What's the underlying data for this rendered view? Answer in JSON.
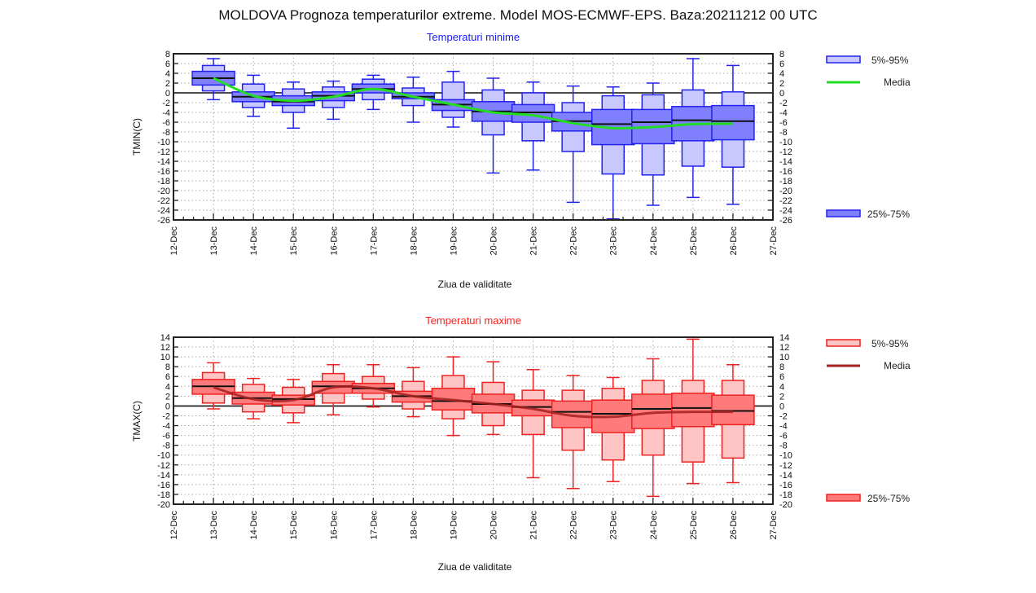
{
  "page": {
    "title": "MOLDOVA  Prognoza temperaturilor extreme.  Model MOS-ECMWF-EPS. Baza:20211212 00 UTC"
  },
  "chart_data": [
    {
      "type": "box",
      "id": "tmin",
      "title": "Temperaturi minime",
      "title_color": "#1a1aff",
      "xlabel": "Ziua de validitate",
      "ylabel": "TMIN(C)",
      "ylim": [
        -26,
        8
      ],
      "ytick_step": 2,
      "x_tick_labels": [
        "12-Dec",
        "13-Dec",
        "14-Dec",
        "15-Dec",
        "16-Dec",
        "17-Dec",
        "18-Dec",
        "19-Dec",
        "20-Dec",
        "21-Dec",
        "22-Dec",
        "23-Dec",
        "24-Dec",
        "25-Dec",
        "26-Dec",
        "27-Dec"
      ],
      "grid": true,
      "colors": {
        "p5_95_fill": "#c8c8ff",
        "p25_75_fill": "#8080ff",
        "edge": "#2222ee",
        "mean": "#22dd22",
        "median": "#111111"
      },
      "legend": {
        "placement": "right",
        "items": [
          {
            "label": "5%-95%",
            "kind": "box-light"
          },
          {
            "label": "Media",
            "kind": "line"
          },
          {
            "label": "25%-75%",
            "kind": "box-dark"
          }
        ]
      },
      "categories": [
        "13-Dec",
        "14-Dec",
        "15-Dec",
        "16-Dec",
        "17-Dec",
        "18-Dec",
        "19-Dec",
        "20-Dec",
        "21-Dec",
        "22-Dec",
        "23-Dec",
        "24-Dec",
        "25-Dec",
        "26-Dec"
      ],
      "series": [
        {
          "name": "min",
          "values": [
            -1.4,
            -4.8,
            -7.2,
            -5.4,
            -3.4,
            -6.0,
            -7.0,
            -16.4,
            -15.8,
            -22.4,
            -25.8,
            -23.0,
            -21.4,
            -22.8
          ]
        },
        {
          "name": "p5",
          "values": [
            0.4,
            -3.0,
            -4.0,
            -3.0,
            -1.4,
            -2.6,
            -5.0,
            -8.6,
            -9.8,
            -12.0,
            -16.6,
            -16.8,
            -15.0,
            -15.2
          ]
        },
        {
          "name": "p25",
          "values": [
            1.6,
            -1.8,
            -2.6,
            -1.6,
            0.0,
            -1.2,
            -3.6,
            -5.8,
            -6.0,
            -7.8,
            -10.6,
            -10.4,
            -9.8,
            -9.6
          ]
        },
        {
          "name": "median",
          "values": [
            3.0,
            -0.8,
            -1.8,
            -0.6,
            0.8,
            -0.8,
            -2.4,
            -3.8,
            -4.0,
            -5.8,
            -6.4,
            -6.0,
            -5.6,
            -5.8
          ]
        },
        {
          "name": "p75",
          "values": [
            4.4,
            0.2,
            -0.6,
            0.2,
            1.8,
            0.0,
            -1.4,
            -1.8,
            -2.4,
            -4.0,
            -3.4,
            -3.4,
            -2.8,
            -2.6
          ]
        },
        {
          "name": "p95",
          "values": [
            5.6,
            1.8,
            0.8,
            1.2,
            2.8,
            1.0,
            2.2,
            0.6,
            0.0,
            -2.0,
            -0.6,
            -0.4,
            0.6,
            0.2
          ]
        },
        {
          "name": "max",
          "values": [
            7.0,
            3.6,
            2.2,
            2.4,
            3.6,
            3.2,
            4.4,
            3.0,
            2.2,
            1.4,
            1.2,
            2.0,
            7.0,
            5.6
          ]
        },
        {
          "name": "Media",
          "values": [
            3.0,
            -0.6,
            -1.6,
            -0.8,
            0.8,
            -0.8,
            -2.4,
            -4.0,
            -4.6,
            -6.2,
            -7.2,
            -7.0,
            -6.4,
            -6.3
          ]
        }
      ]
    },
    {
      "type": "box",
      "id": "tmax",
      "title": "Temperaturi maxime",
      "title_color": "#ff2020",
      "xlabel": "Ziua de validitate",
      "ylabel": "TMAX(C)",
      "ylim": [
        -20,
        14
      ],
      "ytick_step": 2,
      "x_tick_labels": [
        "12-Dec",
        "13-Dec",
        "14-Dec",
        "15-Dec",
        "16-Dec",
        "17-Dec",
        "18-Dec",
        "19-Dec",
        "20-Dec",
        "21-Dec",
        "22-Dec",
        "23-Dec",
        "24-Dec",
        "25-Dec",
        "26-Dec",
        "27-Dec"
      ],
      "grid": true,
      "colors": {
        "p5_95_fill": "#ffc4c4",
        "p25_75_fill": "#ff7b7b",
        "edge": "#ee2222",
        "mean": "#a52020",
        "median": "#111111"
      },
      "legend": {
        "placement": "right",
        "items": [
          {
            "label": "5%-95%",
            "kind": "box-light"
          },
          {
            "label": "Media",
            "kind": "line"
          },
          {
            "label": "25%-75%",
            "kind": "box-dark"
          }
        ]
      },
      "categories": [
        "13-Dec",
        "14-Dec",
        "15-Dec",
        "16-Dec",
        "17-Dec",
        "18-Dec",
        "19-Dec",
        "20-Dec",
        "21-Dec",
        "22-Dec",
        "23-Dec",
        "24-Dec",
        "25-Dec",
        "26-Dec"
      ],
      "series": [
        {
          "name": "min",
          "values": [
            -0.6,
            -2.6,
            -3.4,
            -1.8,
            -0.2,
            -2.2,
            -6.0,
            -5.8,
            -14.6,
            -16.8,
            -15.4,
            -18.4,
            -15.8,
            -15.6
          ]
        },
        {
          "name": "p5",
          "values": [
            0.6,
            -1.2,
            -1.4,
            0.6,
            1.4,
            -0.6,
            -2.6,
            -4.0,
            -5.8,
            -9.0,
            -11.0,
            -10.0,
            -11.4,
            -10.6
          ]
        },
        {
          "name": "p25",
          "values": [
            2.4,
            0.4,
            0.2,
            2.6,
            2.6,
            0.8,
            -0.8,
            -1.4,
            -2.0,
            -4.4,
            -5.4,
            -4.6,
            -4.2,
            -3.8
          ]
        },
        {
          "name": "median",
          "values": [
            4.0,
            1.6,
            1.4,
            4.0,
            3.6,
            2.0,
            1.0,
            0.4,
            -0.2,
            -1.2,
            -1.6,
            -0.6,
            -0.4,
            -1.0
          ]
        },
        {
          "name": "p75",
          "values": [
            5.4,
            2.8,
            2.2,
            5.0,
            4.6,
            3.0,
            3.6,
            2.4,
            1.2,
            1.0,
            1.2,
            2.4,
            2.6,
            2.2
          ]
        },
        {
          "name": "p95",
          "values": [
            6.8,
            4.4,
            3.8,
            6.6,
            6.0,
            5.0,
            6.2,
            4.8,
            3.2,
            3.2,
            3.6,
            5.2,
            5.2,
            5.2
          ]
        },
        {
          "name": "max",
          "values": [
            8.8,
            5.6,
            5.4,
            8.4,
            8.4,
            7.8,
            10.0,
            9.0,
            7.4,
            6.2,
            5.8,
            9.6,
            13.6,
            8.4
          ]
        },
        {
          "name": "Media",
          "values": [
            3.8,
            1.4,
            1.2,
            3.8,
            3.6,
            2.0,
            1.2,
            0.4,
            -0.6,
            -2.0,
            -2.2,
            -1.4,
            -1.2,
            -1.2
          ]
        }
      ]
    }
  ]
}
